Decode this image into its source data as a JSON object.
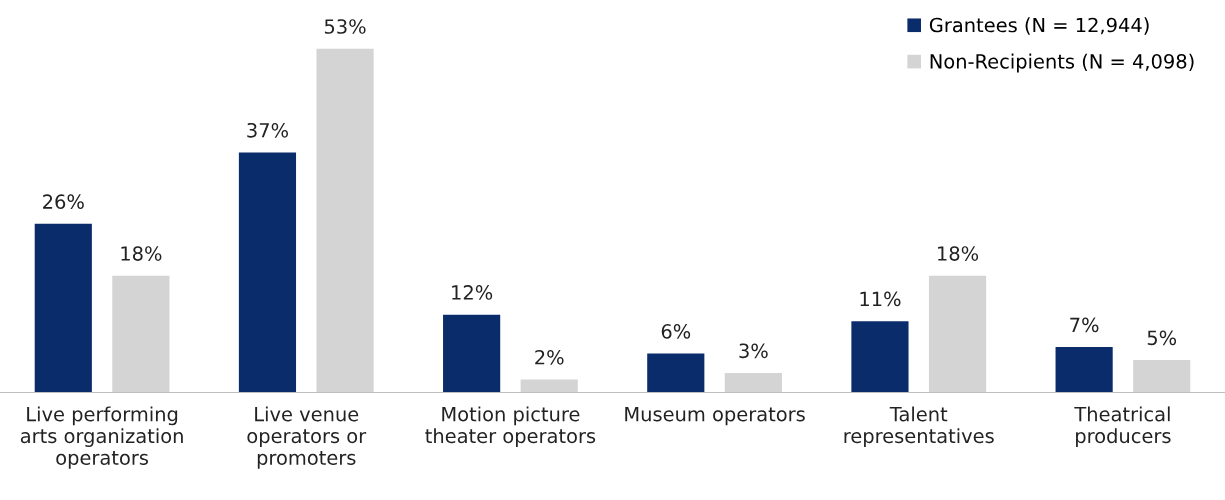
{
  "chart_data": {
    "type": "bar",
    "categories": [
      "Live performing\narts organization\noperators",
      "Live venue\noperators or\npromoters",
      "Motion picture\ntheater operators",
      "Museum operators",
      "Talent\nrepresentatives",
      "Theatrical\nproducers"
    ],
    "series": [
      {
        "name": "Grantees (N = 12,944)",
        "color": "#0b2c6b",
        "values": [
          26,
          37,
          12,
          6,
          11,
          7
        ],
        "value_labels": [
          "26%",
          "37%",
          "12%",
          "6%",
          "11%",
          "7%"
        ]
      },
      {
        "name": "Non-Recipients (N = 4,098)",
        "color": "#d4d4d4",
        "values": [
          18,
          53,
          2,
          3,
          18,
          5
        ],
        "value_labels": [
          "18%",
          "53%",
          "2%",
          "3%",
          "18%",
          "5%"
        ]
      }
    ],
    "legend": "top right",
    "grid": false
  }
}
